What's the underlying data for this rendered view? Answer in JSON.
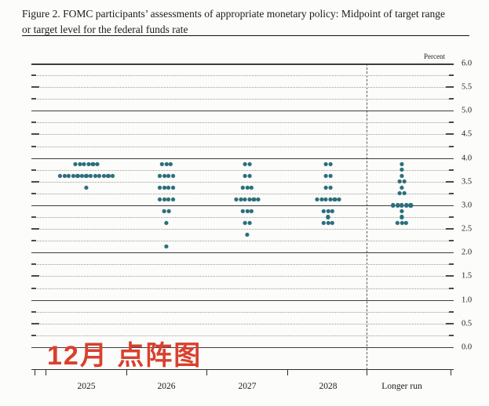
{
  "title": {
    "line1": "Figure 2. FOMC participants’ assessments of appropriate monetary policy: Midpoint of target range",
    "line2": "or target level for the federal funds rate"
  },
  "annotation": {
    "text": "12月 点阵图",
    "color": "#d9402e"
  },
  "chart_data": {
    "type": "scatter",
    "title": "FOMC dot plot — midpoint of target range or target level for the federal funds rate",
    "ylabel": "Percent",
    "ylim": [
      0.0,
      6.0
    ],
    "grid": "dotted quarter-point lines, solid lines at whole percents",
    "legend_position": "none",
    "axis": {
      "unit_label": "Percent",
      "tick_labels": [
        "6.0",
        "5.5",
        "5.0",
        "4.5",
        "4.0",
        "3.5",
        "3.0",
        "2.5",
        "2.0",
        "1.5",
        "1.0",
        "0.5",
        "0.0"
      ],
      "tick_values": [
        6.0,
        5.5,
        5.0,
        4.5,
        4.0,
        3.5,
        3.0,
        2.5,
        2.0,
        1.5,
        1.0,
        0.5,
        0.0
      ]
    },
    "dot_color": "#2a6e7c",
    "columns": [
      {
        "label": "2025",
        "dots": [
          {
            "value": 3.875,
            "count": 6
          },
          {
            "value": 3.625,
            "count": 13
          },
          {
            "value": 3.375,
            "count": 1
          }
        ]
      },
      {
        "label": "2026",
        "dots": [
          {
            "value": 3.875,
            "count": 3
          },
          {
            "value": 3.625,
            "count": 4
          },
          {
            "value": 3.375,
            "count": 4
          },
          {
            "value": 3.125,
            "count": 4
          },
          {
            "value": 2.875,
            "count": 2
          },
          {
            "value": 2.625,
            "count": 1
          },
          {
            "value": 2.125,
            "count": 1
          }
        ]
      },
      {
        "label": "2027",
        "dots": [
          {
            "value": 3.875,
            "count": 2
          },
          {
            "value": 3.625,
            "count": 2
          },
          {
            "value": 3.375,
            "count": 3
          },
          {
            "value": 3.125,
            "count": 6
          },
          {
            "value": 2.875,
            "count": 3
          },
          {
            "value": 2.625,
            "count": 2
          },
          {
            "value": 2.375,
            "count": 1
          }
        ]
      },
      {
        "label": "2028",
        "dots": [
          {
            "value": 3.875,
            "count": 2
          },
          {
            "value": 3.625,
            "count": 2
          },
          {
            "value": 3.375,
            "count": 2
          },
          {
            "value": 3.125,
            "count": 6
          },
          {
            "value": 2.875,
            "count": 3
          },
          {
            "value": 2.75,
            "count": 1
          },
          {
            "value": 2.625,
            "count": 3
          }
        ]
      },
      {
        "label": "Longer run",
        "dots": [
          {
            "value": 3.875,
            "count": 1
          },
          {
            "value": 3.75,
            "count": 1
          },
          {
            "value": 3.625,
            "count": 1
          },
          {
            "value": 3.5,
            "count": 2
          },
          {
            "value": 3.375,
            "count": 1
          },
          {
            "value": 3.25,
            "count": 2
          },
          {
            "value": 3.0,
            "count": 5
          },
          {
            "value": 2.875,
            "count": 1
          },
          {
            "value": 2.75,
            "count": 1
          },
          {
            "value": 2.625,
            "count": 3
          }
        ]
      }
    ]
  }
}
